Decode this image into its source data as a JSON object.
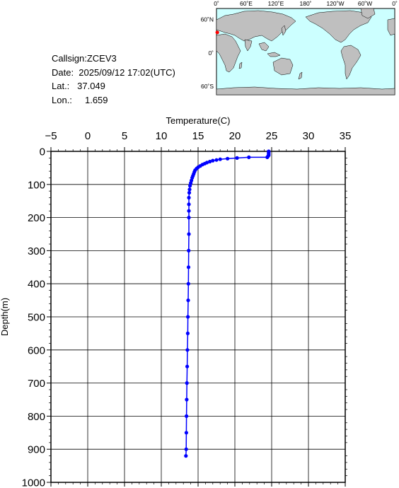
{
  "info": {
    "callsign": "Callsign:ZCEV3",
    "date": "Date:  2025/09/12 17:02(UTC)",
    "lat": "Lat.:   37.049",
    "lon": "Lon.:     1.659"
  },
  "map": {
    "top_labels": [
      "0˚",
      "60˚E",
      "120˚E",
      "180˚",
      "120˚W",
      "60˚W",
      "0˚"
    ],
    "left_labels": [
      "60˚N",
      "0˚",
      "60˚S"
    ],
    "station_lat": 37.049,
    "station_lon": 1.659,
    "ocean_color": "#ccffff",
    "land_color": "#bfbfbf",
    "marker_color": "#ff0000"
  },
  "chart_data": {
    "type": "line",
    "title": "",
    "xlabel": "Temperature(C)",
    "ylabel": "Depth(m)",
    "xlim": [
      -5,
      35
    ],
    "ylim": [
      0,
      1000
    ],
    "x_ticks": [
      -5,
      0,
      5,
      10,
      15,
      20,
      25,
      30,
      35
    ],
    "y_ticks": [
      0,
      100,
      200,
      300,
      400,
      500,
      600,
      700,
      800,
      900,
      1000
    ],
    "grid": true,
    "series": [
      {
        "color": "#0000ff",
        "points": [
          [
            24.6,
            0
          ],
          [
            24.6,
            3
          ],
          [
            24.6,
            6
          ],
          [
            24.6,
            9
          ],
          [
            24.6,
            12
          ],
          [
            24.5,
            15
          ],
          [
            24.4,
            18
          ],
          [
            21.9,
            18
          ],
          [
            20.3,
            20
          ],
          [
            19.0,
            22
          ],
          [
            18.0,
            24
          ],
          [
            17.5,
            26
          ],
          [
            17.0,
            28
          ],
          [
            16.6,
            31
          ],
          [
            16.2,
            34
          ],
          [
            15.9,
            37
          ],
          [
            15.6,
            40
          ],
          [
            15.3,
            44
          ],
          [
            15.0,
            48
          ],
          [
            14.8,
            52
          ],
          [
            14.6,
            57
          ],
          [
            14.5,
            62
          ],
          [
            14.4,
            68
          ],
          [
            14.3,
            74
          ],
          [
            14.2,
            80
          ],
          [
            14.1,
            88
          ],
          [
            14.0,
            96
          ],
          [
            13.9,
            104
          ],
          [
            13.85,
            115
          ],
          [
            13.8,
            125
          ],
          [
            13.75,
            140
          ],
          [
            13.75,
            160
          ],
          [
            13.75,
            180
          ],
          [
            13.75,
            200
          ],
          [
            13.75,
            250
          ],
          [
            13.72,
            300
          ],
          [
            13.7,
            350
          ],
          [
            13.68,
            400
          ],
          [
            13.65,
            450
          ],
          [
            13.62,
            500
          ],
          [
            13.6,
            550
          ],
          [
            13.55,
            600
          ],
          [
            13.52,
            650
          ],
          [
            13.48,
            700
          ],
          [
            13.45,
            750
          ],
          [
            13.42,
            800
          ],
          [
            13.4,
            850
          ],
          [
            13.38,
            900
          ],
          [
            13.35,
            920
          ]
        ]
      }
    ]
  }
}
